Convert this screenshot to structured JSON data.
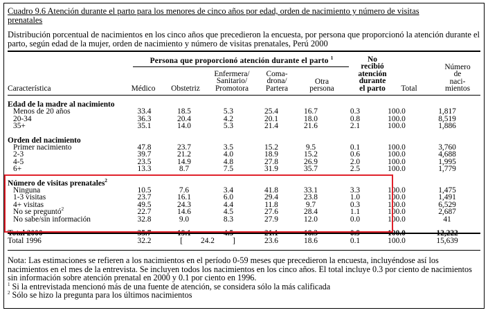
{
  "header": {
    "title_line1": "Cuadro 9.6  Atención durante el parto para los menores de cinco años por edad, orden de nacimiento y número de visitas",
    "title_line2": "prenatales",
    "description": "Distribución porcentual de  nacimientos en los cinco años que precedieron la encuesta, por persona que proporcionó la atención durante el parto, según edad de la mujer, orden de nacimiento y número de visitas prenatales, Perú 2000"
  },
  "columns": {
    "group_title": "Persona que proporcionó atención durante el parto",
    "group_sup": "1",
    "caracteristica": "Característica",
    "medico": "Médico",
    "obstetriz": "Obstetriz",
    "enfermera_1": "Enfermera/",
    "enfermera_2": "Sanitario/",
    "enfermera_3": "Promotora",
    "comadrona_1": "Coma-",
    "comadrona_2": "drona/",
    "comadrona_3": "Partera",
    "otra_1": "Otra",
    "otra_2": "persona",
    "no_recibio_1": "No",
    "no_recibio_2": "recibió",
    "no_recibio_3": "atención",
    "no_recibio_4": "durante",
    "no_recibio_5": "el parto",
    "total": "Total",
    "numero_1": "Número",
    "numero_2": "de",
    "numero_3": "naci-",
    "numero_4": "mientos"
  },
  "sections": [
    {
      "title": "Edad de la madre al nacimiento",
      "title_sup": "",
      "rows": [
        {
          "label": "Menos de 20 años",
          "sup": "",
          "values": [
            "33.4",
            "18.5",
            "5.3",
            "25.4",
            "16.7",
            "0.3",
            "100.0",
            "1,817"
          ]
        },
        {
          "label": "20-34",
          "sup": "",
          "values": [
            "36.3",
            "20.4",
            "4.2",
            "20.1",
            "18.0",
            "0.8",
            "100.0",
            "8,519"
          ]
        },
        {
          "label": "35+",
          "sup": "",
          "values": [
            "35.1",
            "14.0",
            "5.3",
            "21.4",
            "21.6",
            "2.1",
            "100.0",
            "1,886"
          ]
        }
      ]
    },
    {
      "title": "Orden del nacimiento",
      "title_sup": "",
      "rows": [
        {
          "label": "Primer nacimiento",
          "sup": "",
          "values": [
            "47.8",
            "23.7",
            "3.5",
            "15.2",
            "9.5",
            "0.1",
            "100.0",
            "3,760"
          ]
        },
        {
          "label": "2-3",
          "sup": "",
          "values": [
            "39.7",
            "21.2",
            "4.0",
            "18.9",
            "15.2",
            "0.6",
            "100.0",
            "4,688"
          ]
        },
        {
          "label": "4-5",
          "sup": "",
          "values": [
            "23.5",
            "14.9",
            "4.8",
            "27.8",
            "26.9",
            "2.0",
            "100.0",
            "1,995"
          ]
        },
        {
          "label": "6+",
          "sup": "",
          "values": [
            "13.3",
            "8.7",
            "7.5",
            "31.9",
            "35.7",
            "2.5",
            "100.0",
            "1,779"
          ]
        }
      ]
    },
    {
      "title": "Número de visitas prenatales",
      "title_sup": "2",
      "rows": [
        {
          "label": "Ninguna",
          "sup": "",
          "values": [
            "10.5",
            "7.6",
            "3.4",
            "41.8",
            "33.1",
            "3.3",
            "100.0",
            "1,475"
          ]
        },
        {
          "label": "1-3 visitas",
          "sup": "",
          "values": [
            "23.7",
            "16.1",
            "6.0",
            "29.4",
            "23.8",
            "1.0",
            "100.0",
            "1,491"
          ]
        },
        {
          "label": "4+ visitas",
          "sup": "",
          "values": [
            "49.5",
            "24.3",
            "4.4",
            "11.8",
            "9.7",
            "0.3",
            "100.0",
            "6,529"
          ]
        },
        {
          "label": "No se preguntó",
          "sup": "2",
          "values": [
            "22.7",
            "14.6",
            "4.5",
            "27.6",
            "28.4",
            "1.1",
            "100.0",
            "2,687"
          ]
        },
        {
          "label": "No sabe/sin información",
          "sup": "",
          "values": [
            "32.8",
            "9.0",
            "8.3",
            "27.9",
            "12.0",
            "0.0",
            "100.0",
            "41"
          ]
        }
      ]
    }
  ],
  "totals": {
    "total_2000": {
      "label": "Total 2000",
      "values": [
        "35.7",
        "19.1",
        "4.5",
        "21.1",
        "18.3",
        "0.9",
        "100.0",
        "12,222"
      ]
    },
    "total_1996": {
      "label": "Total 1996",
      "medico": "32.2",
      "bracket_open": "[",
      "bracket_value": "24.2",
      "bracket_close": "]",
      "values_rest": [
        "23.6",
        "18.6",
        "0.1",
        "100.0",
        "15,639"
      ]
    }
  },
  "notes": {
    "nota": "Nota:  Las estimaciones se refieren a los nacimientos en el período 0-59 meses que precedieron la encuesta, incluyéndose así los nacimientos en el mes de la entrevista.  Se incluyen todos los nacimientos en los cinco años. El total incluye 0.3 por ciento de nacimientos sin información sobre atención prenatal en 2000 y 0.1 por ciento en 1996.",
    "fn1_mark": "1",
    "fn1": " Si la entrevistada mencionó más de una fuente de atención, se considera sólo la más calificada",
    "fn2_mark": "2",
    "fn2": " Sólo se hizo la pregunta para los últimos nacimientos"
  },
  "highlight": {
    "color": "#e0212b",
    "target": "Número de visitas prenatales"
  }
}
